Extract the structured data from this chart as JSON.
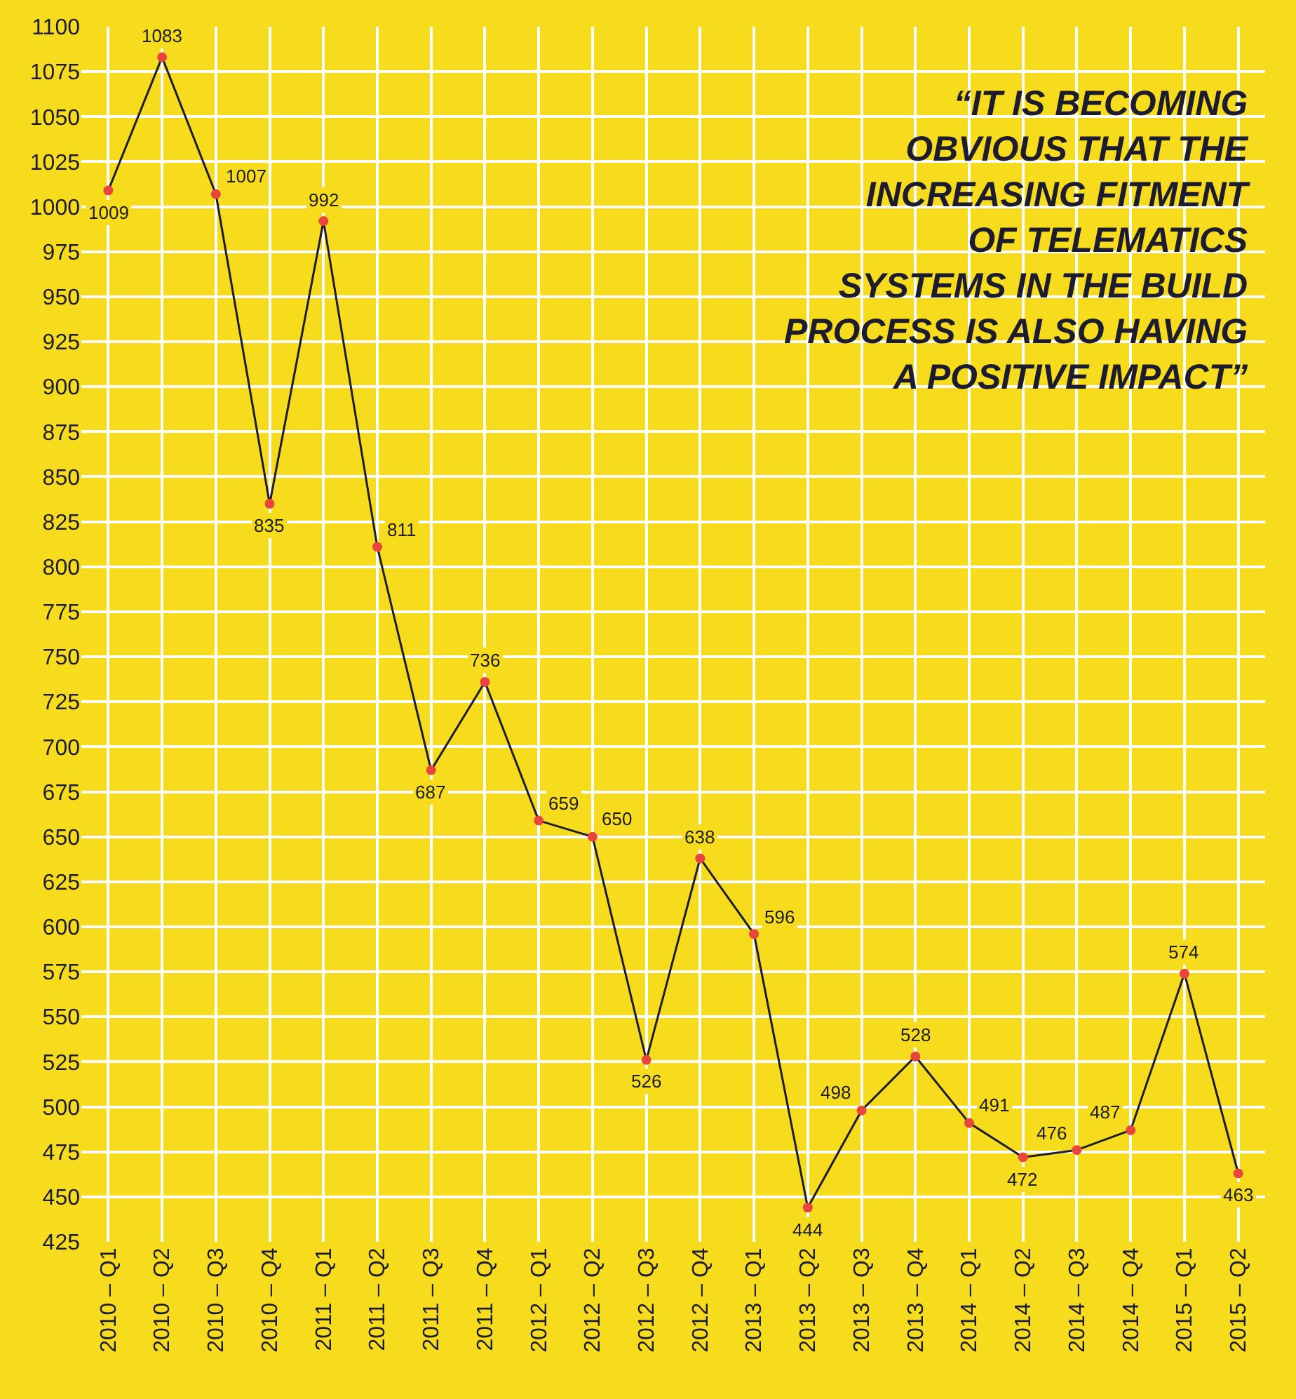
{
  "chart_data": {
    "type": "line",
    "categories": [
      "2010 – Q1",
      "2010 – Q2",
      "2010 – Q3",
      "2010 – Q4",
      "2011 – Q1",
      "2011 – Q2",
      "2011 – Q3",
      "2011 – Q4",
      "2012 – Q1",
      "2012 – Q2",
      "2012 – Q3",
      "2012 – Q4",
      "2013 – Q1",
      "2013 – Q2",
      "2013 – Q3",
      "2013 – Q4",
      "2014 – Q1",
      "2014 – Q2",
      "2014 – Q3",
      "2014 – Q4",
      "2015 – Q1",
      "2015 – Q2"
    ],
    "values": [
      1009,
      1083,
      1007,
      835,
      992,
      811,
      687,
      736,
      659,
      650,
      526,
      638,
      596,
      444,
      498,
      528,
      491,
      472,
      476,
      487,
      574,
      463
    ],
    "color": "#1c1c2e",
    "colors": [
      "#e8453c",
      "#e8453c",
      "#e8453c",
      "#e8453c",
      "#e8453c",
      "#e8453c",
      "#e8453c",
      "#e8453c",
      "#e8453c",
      "#e8453c",
      "#e8453c",
      "#e8453c",
      "#e8453c",
      "#e8453c",
      "#e8453c",
      "#e8453c",
      "#e8453c",
      "#e8453c",
      "#e8453c",
      "#e8453c",
      "#e8453c",
      "#e8453c"
    ],
    "ylim": [
      425,
      1100
    ],
    "yticks": [
      425,
      450,
      475,
      500,
      525,
      550,
      575,
      600,
      625,
      650,
      675,
      700,
      725,
      750,
      775,
      800,
      825,
      850,
      875,
      900,
      925,
      950,
      975,
      1000,
      1025,
      1050,
      1075,
      1100
    ],
    "grid": true,
    "marker": "circle",
    "line_style": "solid",
    "data_labels": true,
    "annotations": [
      "“IT IS BECOMING\nOBVIOUS THAT THE\nINCREASING FITMENT\nOF TELEMATICS\nSYSTEMS IN THE BUILD\nPROCESS IS ALSO HAVING\nA POSITIVE IMPACT”"
    ]
  }
}
